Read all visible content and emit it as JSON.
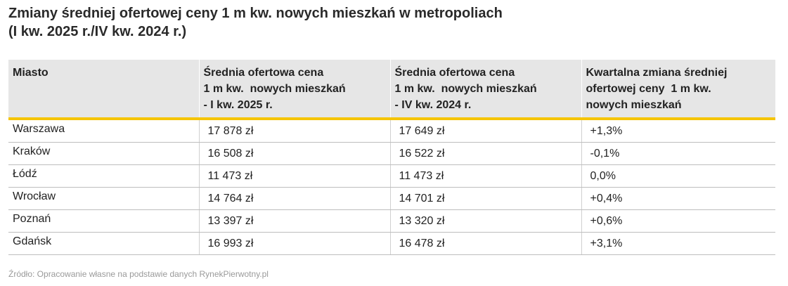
{
  "title": [
    "Zmiany średniej ofertowej ceny 1 m kw. nowych mieszkań w metropoliach",
    "(I kw. 2025 r./IV kw. 2024 r.)"
  ],
  "table": {
    "header": [
      [
        "Miasto"
      ],
      [
        "Średnia ofertowa cena",
        "1 m kw.  nowych mieszkań",
        "- I kw. 2025 r."
      ],
      [
        "Średnia ofertowa cena",
        "1 m kw.  nowych mieszkań",
        "- IV kw. 2024 r."
      ],
      [
        "Kwartalna zmiana średniej",
        "ofertowej ceny  1 m kw.",
        "nowych mieszkań"
      ]
    ],
    "rows": [
      [
        "Warszawa",
        "17 878 zł",
        "17 649 zł",
        "+1,3%"
      ],
      [
        "Kraków",
        "16 508 zł",
        "16 522 zł",
        "-0,1%"
      ],
      [
        "Łódź",
        "11 473 zł",
        "11 473 zł",
        "0,0%"
      ],
      [
        "Wrocław",
        "14 764 zł",
        "14 701 zł",
        "+0,4%"
      ],
      [
        "Poznań",
        "13 397 zł",
        "13 320 zł",
        "+0,6%"
      ],
      [
        "Gdańsk",
        "16 993 zł",
        "16 478 zł",
        "+3,1%"
      ]
    ]
  },
  "source": "Źródło: Opracowanie własne na podstawie danych RynekPierwotny.pl"
}
